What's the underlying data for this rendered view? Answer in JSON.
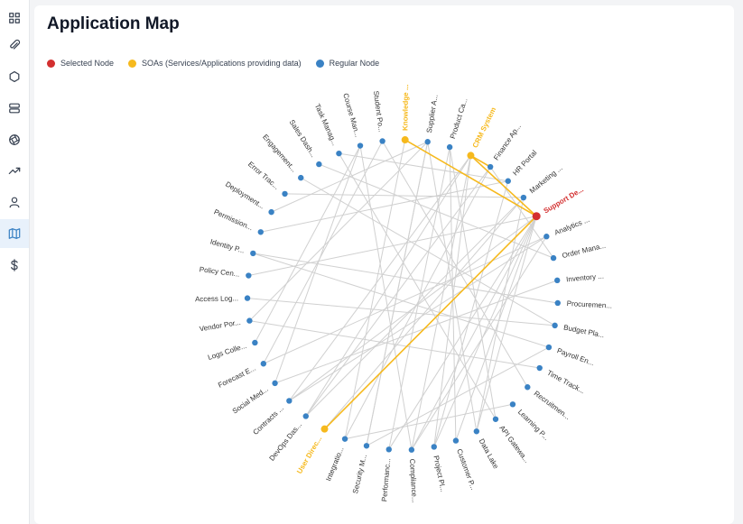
{
  "colors": {
    "selected": "#d32f2f",
    "soa": "#f6b91d",
    "regular": "#3a82c4",
    "edge": "#d0d0d0",
    "label": "#333333"
  },
  "sidebar": {
    "items": [
      {
        "icon": "grid-icon",
        "label": "Dashboard"
      },
      {
        "icon": "paperclip-icon",
        "label": "Attachments"
      },
      {
        "icon": "hexagon-icon",
        "label": "Components"
      },
      {
        "icon": "layers-icon",
        "label": "Storage"
      },
      {
        "icon": "aperture-icon",
        "label": "Integrations"
      },
      {
        "icon": "trending-up-icon",
        "label": "Trends"
      },
      {
        "icon": "user-icon",
        "label": "Users"
      },
      {
        "icon": "map-icon",
        "label": "Application Map",
        "active": true
      },
      {
        "icon": "dollar-icon",
        "label": "Costs"
      }
    ]
  },
  "header": {
    "title": "Application Map"
  },
  "legend": {
    "selected": "Selected Node",
    "soa": "SOAs (Services/Applications providing data)",
    "regular": "Regular Node"
  },
  "graph": {
    "nodes": [
      {
        "label": "Support De...",
        "type": "selected"
      },
      {
        "label": "Analytics ...",
        "type": "regular"
      },
      {
        "label": "Order Mana...",
        "type": "regular"
      },
      {
        "label": "Inventory ...",
        "type": "regular"
      },
      {
        "label": "Procuremen...",
        "type": "regular"
      },
      {
        "label": "Budget Pla...",
        "type": "regular"
      },
      {
        "label": "Payroll En...",
        "type": "regular"
      },
      {
        "label": "Time Track...",
        "type": "regular"
      },
      {
        "label": "Recruitmen...",
        "type": "regular"
      },
      {
        "label": "Learning P...",
        "type": "regular"
      },
      {
        "label": "API Gatewa...",
        "type": "regular"
      },
      {
        "label": "Data Lake",
        "type": "regular"
      },
      {
        "label": "Customer P...",
        "type": "regular"
      },
      {
        "label": "Project Pl...",
        "type": "regular"
      },
      {
        "label": "Compliance...",
        "type": "regular"
      },
      {
        "label": "Performanc...",
        "type": "regular"
      },
      {
        "label": "Security M...",
        "type": "regular"
      },
      {
        "label": "Integratio...",
        "type": "regular"
      },
      {
        "label": "User Direc...",
        "type": "soa"
      },
      {
        "label": "DevOps Das...",
        "type": "regular"
      },
      {
        "label": "Contracts ...",
        "type": "regular"
      },
      {
        "label": "Social Med...",
        "type": "regular"
      },
      {
        "label": "Forecast E...",
        "type": "regular"
      },
      {
        "label": "Logs Colle...",
        "type": "regular"
      },
      {
        "label": "Vendor Por...",
        "type": "regular"
      },
      {
        "label": "Access Log...",
        "type": "regular"
      },
      {
        "label": "Policy Cen...",
        "type": "regular"
      },
      {
        "label": "Identity P...",
        "type": "regular"
      },
      {
        "label": "Permission...",
        "type": "regular"
      },
      {
        "label": "Deployment...",
        "type": "regular"
      },
      {
        "label": "Error Trac...",
        "type": "regular"
      },
      {
        "label": "Engagement...",
        "type": "regular"
      },
      {
        "label": "Sales Dash...",
        "type": "regular"
      },
      {
        "label": "Task Manag...",
        "type": "regular"
      },
      {
        "label": "Course Man...",
        "type": "regular"
      },
      {
        "label": "Student Po...",
        "type": "regular"
      },
      {
        "label": "Knowledge ...",
        "type": "soa"
      },
      {
        "label": "Supplier A...",
        "type": "regular"
      },
      {
        "label": "Product Ca...",
        "type": "regular"
      },
      {
        "label": "CRM System",
        "type": "soa"
      },
      {
        "label": "Finance Ap...",
        "type": "regular"
      },
      {
        "label": "HR Portal",
        "type": "regular"
      },
      {
        "label": "Marketing ...",
        "type": "regular"
      }
    ],
    "highlight_edges": [
      [
        0,
        36
      ],
      [
        0,
        39
      ],
      [
        0,
        18
      ],
      [
        39,
        40
      ]
    ],
    "edges": [
      [
        0,
        13
      ],
      [
        0,
        12
      ],
      [
        0,
        14
      ],
      [
        0,
        26
      ],
      [
        0,
        20
      ],
      [
        0,
        11
      ],
      [
        0,
        15
      ],
      [
        1,
        22
      ],
      [
        1,
        20
      ],
      [
        1,
        14
      ],
      [
        3,
        21
      ],
      [
        4,
        27
      ],
      [
        5,
        31
      ],
      [
        5,
        25
      ],
      [
        6,
        16
      ],
      [
        7,
        24
      ],
      [
        8,
        35
      ],
      [
        9,
        17
      ],
      [
        10,
        33
      ],
      [
        10,
        38
      ],
      [
        11,
        37
      ],
      [
        12,
        38
      ],
      [
        13,
        39
      ],
      [
        14,
        34
      ],
      [
        15,
        38
      ],
      [
        16,
        37
      ],
      [
        19,
        39
      ],
      [
        19,
        40
      ],
      [
        20,
        39
      ],
      [
        21,
        34
      ],
      [
        22,
        35
      ],
      [
        23,
        34
      ],
      [
        24,
        37
      ],
      [
        28,
        41
      ],
      [
        29,
        37
      ],
      [
        30,
        42
      ],
      [
        32,
        2
      ],
      [
        33,
        41
      ],
      [
        40,
        2
      ],
      [
        41,
        13
      ],
      [
        42,
        11
      ],
      [
        39,
        14
      ],
      [
        37,
        16
      ],
      [
        36,
        17
      ],
      [
        18,
        42
      ],
      [
        17,
        40
      ],
      [
        19,
        42
      ],
      [
        27,
        6
      ]
    ]
  }
}
